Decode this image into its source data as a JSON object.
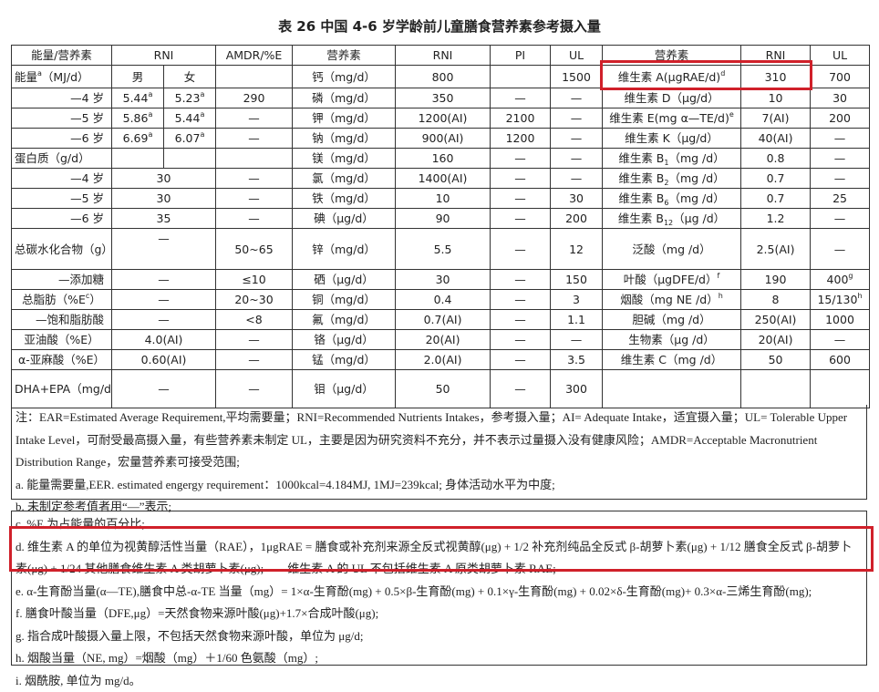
{
  "title": "表 26 中国 4-6 岁学龄前儿童膳食营养素参考摄入量",
  "highlight_color": "#d0202a",
  "table": {
    "rows": [
      [
        {
          "t": "能量/营养素"
        },
        {
          "t": "RNI",
          "span": 2
        },
        {
          "t": "AMDR/%E"
        },
        {
          "t": "营养素"
        },
        {
          "t": "RNI"
        },
        {
          "t": "PI"
        },
        {
          "t": "UL"
        },
        {
          "t": "营养素"
        },
        {
          "t": "RNI"
        },
        {
          "t": "UL"
        }
      ],
      [
        {
          "t": "能量",
          "sup": "a",
          "t2": "（MJ/d）"
        },
        {
          "t": "男"
        },
        {
          "t": "女"
        },
        {
          "t": ""
        },
        {
          "t": "钙（mg/d）"
        },
        {
          "t": "800"
        },
        {
          "t": ""
        },
        {
          "t": "1500"
        },
        {
          "t": "维生素 A(μgRAE/d)",
          "sup": "d"
        },
        {
          "t": "310"
        },
        {
          "t": "700"
        }
      ],
      [
        {
          "t": "—4 岁"
        },
        {
          "t": "5.44",
          "sup": "a"
        },
        {
          "t": "5.23",
          "sup": "a"
        },
        {
          "t": "290"
        },
        {
          "t": "磷（mg/d）"
        },
        {
          "t": "350"
        },
        {
          "t": "—"
        },
        {
          "t": "—"
        },
        {
          "t": "维生素 D（μg/d）"
        },
        {
          "t": "10"
        },
        {
          "t": "30"
        }
      ],
      [
        {
          "t": "—5 岁"
        },
        {
          "t": "5.86",
          "sup": "a"
        },
        {
          "t": "5.44",
          "sup": "a"
        },
        {
          "t": "—"
        },
        {
          "t": "钾（mg/d）"
        },
        {
          "t": "1200(AI)"
        },
        {
          "t": "2100"
        },
        {
          "t": "—"
        },
        {
          "t": "维生素 E(mg α—TE/d)",
          "sup": "e"
        },
        {
          "t": "7(AI)"
        },
        {
          "t": "200"
        }
      ],
      [
        {
          "t": "—6 岁"
        },
        {
          "t": "6.69",
          "sup": "a"
        },
        {
          "t": "6.07",
          "sup": "a"
        },
        {
          "t": "—"
        },
        {
          "t": "钠（mg/d）"
        },
        {
          "t": "900(AI)"
        },
        {
          "t": "1200"
        },
        {
          "t": "—"
        },
        {
          "t": "维生素 K（μg/d）"
        },
        {
          "t": "40(AI)"
        },
        {
          "t": "—"
        }
      ],
      [
        {
          "t": "蛋白质（g/d）"
        },
        {
          "t": ""
        },
        {
          "t": ""
        },
        {
          "t": ""
        },
        {
          "t": "镁（mg/d）"
        },
        {
          "t": "160"
        },
        {
          "t": "—"
        },
        {
          "t": "—"
        },
        {
          "t": "维生素 B",
          "sub": "1",
          "t2": "（mg /d）"
        },
        {
          "t": "0.8"
        },
        {
          "t": "—"
        }
      ],
      [
        {
          "t": "—4 岁"
        },
        {
          "t": "30",
          "span": 2
        },
        {
          "t": "—"
        },
        {
          "t": "氯（mg/d）"
        },
        {
          "t": "1400(AI)"
        },
        {
          "t": "—"
        },
        {
          "t": "—"
        },
        {
          "t": "维生素 B",
          "sub": "2",
          "t2": "（mg /d）"
        },
        {
          "t": "0.7"
        },
        {
          "t": "—"
        }
      ],
      [
        {
          "t": "—5 岁"
        },
        {
          "t": "30",
          "span": 2
        },
        {
          "t": "—"
        },
        {
          "t": "铁（mg/d）"
        },
        {
          "t": "10"
        },
        {
          "t": "—"
        },
        {
          "t": "30"
        },
        {
          "t": "维生素 B",
          "sub": "6",
          "t2": "（mg /d）"
        },
        {
          "t": "0.7"
        },
        {
          "t": "25"
        }
      ],
      [
        {
          "t": "—6 岁"
        },
        {
          "t": "35",
          "span": 2
        },
        {
          "t": "—"
        },
        {
          "t": "碘（μg/d）"
        },
        {
          "t": "90"
        },
        {
          "t": "—"
        },
        {
          "t": "200"
        },
        {
          "t": "维生素 B",
          "sub": "12",
          "t2": "（μg /d）"
        },
        {
          "t": "1.2"
        },
        {
          "t": "—"
        }
      ],
      [
        {
          "t": "总碳水化合物（g）"
        },
        {
          "t": "—",
          "span": 2
        },
        {
          "t": "50~65"
        },
        {
          "t": "锌（mg/d）"
        },
        {
          "t": "5.5"
        },
        {
          "t": "—"
        },
        {
          "t": "12"
        },
        {
          "t": "泛酸（mg /d）"
        },
        {
          "t": "2.5(AI)"
        },
        {
          "t": "—"
        }
      ],
      [
        {
          "t": "—添加糖"
        },
        {
          "t": "—",
          "span": 2
        },
        {
          "t": "≤10"
        },
        {
          "t": "硒（μg/d）"
        },
        {
          "t": "30"
        },
        {
          "t": "—"
        },
        {
          "t": "150"
        },
        {
          "t": "叶酸（μgDFE/d）",
          "sup": "f"
        },
        {
          "t": "190"
        },
        {
          "t": "400",
          "sup": "g"
        }
      ],
      [
        {
          "t": "总脂肪（%E",
          "sup": "c",
          "t2": "）"
        },
        {
          "t": "—",
          "span": 2
        },
        {
          "t": "20~30"
        },
        {
          "t": "铜（mg/d）"
        },
        {
          "t": "0.4"
        },
        {
          "t": "—"
        },
        {
          "t": "3"
        },
        {
          "t": "烟酸（mg NE /d）",
          "sup": "h"
        },
        {
          "t": "8"
        },
        {
          "t": "15/130",
          "sup": "h"
        }
      ],
      [
        {
          "t": "—饱和脂肪酸"
        },
        {
          "t": "—",
          "span": 2
        },
        {
          "t": "<8"
        },
        {
          "t": "氟（mg/d）"
        },
        {
          "t": "0.7(AI)"
        },
        {
          "t": "—"
        },
        {
          "t": "1.1"
        },
        {
          "t": "胆碱（mg /d）"
        },
        {
          "t": "250(AI)"
        },
        {
          "t": "1000"
        }
      ],
      [
        {
          "t": "亚油酸（%E）"
        },
        {
          "t": "4.0(AI)",
          "span": 2
        },
        {
          "t": "—"
        },
        {
          "t": "铬（μg/d）"
        },
        {
          "t": "20(AI)"
        },
        {
          "t": "—"
        },
        {
          "t": "—"
        },
        {
          "t": "生物素（μg /d）"
        },
        {
          "t": "20(AI)"
        },
        {
          "t": "—"
        }
      ],
      [
        {
          "t": "α-亚麻酸（%E）"
        },
        {
          "t": "0.60(AI)",
          "span": 2
        },
        {
          "t": "—"
        },
        {
          "t": "锰（mg/d）"
        },
        {
          "t": "2.0(AI)"
        },
        {
          "t": "—"
        },
        {
          "t": "3.5"
        },
        {
          "t": "维生素 C（mg /d）"
        },
        {
          "t": "50"
        },
        {
          "t": "600"
        }
      ],
      [
        {
          "t": "DHA+EPA（mg/d）"
        },
        {
          "t": "—",
          "span": 2
        },
        {
          "t": "—"
        },
        {
          "t": "钼（μg/d）"
        },
        {
          "t": "50"
        },
        {
          "t": "—"
        },
        {
          "t": "300"
        },
        {
          "t": ""
        },
        {
          "t": ""
        },
        {
          "t": ""
        }
      ]
    ]
  },
  "notes_top": [
    "注：EAR=Estimated Average Requirement,平均需要量；RNI=Recommended Nutrients Intakes，参考摄入量；AI= Adequate Intake，适宜摄入量；UL= Tolerable Upper Intake Level，可耐受最高摄入量，有些营养素未制定 UL，主要是因为研究资料不充分，并不表示过量摄入没有健康风险；AMDR=Acceptable Macronutrient Distribution Range，宏量营养素可接受范围;",
    "a. 能量需要量,EER. estimated engergy requirement：1000kcal=4.184MJ, 1MJ=239kcal; 身体活动水平为中度;",
    "b. 未制定参考值者用“—”表示;"
  ],
  "notes_bottom": [
    "c. %E 为占能量的百分比;",
    "d. 维生素 A 的单位为视黄醇活性当量（RAE），1μgRAE = 膳食或补充剂来源全反式视黄醇(μg) + 1/2 补充剂纯品全反式 β-胡萝卜素(μg) + 1/12 膳食全反式 β-胡萝卜素(μg) + 1/24 其他膳食维生素 A 类胡萝卜素(μg);　　维生素 A 的 UL 不包括维生素 A 原类胡萝卜素 RAE;",
    "e. α-生育酚当量(α—TE),膳食中总-α-TE 当量（mg）= 1×α-生育酚(mg) + 0.5×β-生育酚(mg) + 0.1×γ-生育酚(mg) + 0.02×δ-生育酚(mg)+ 0.3×α-三烯生育酚(mg);",
    "f. 膳食叶酸当量（DFE,μg）=天然食物来源叶酸(μg)+1.7×合成叶酸(μg);",
    "g. 指合成叶酸摄入量上限，不包括天然食物来源叶酸，单位为 μg/d;",
    "h. 烟酸当量（NE, mg）=烟酸（mg）＋1/60 色氨酸（mg）;",
    "i. 烟酰胺, 单位为 mg/d。"
  ]
}
